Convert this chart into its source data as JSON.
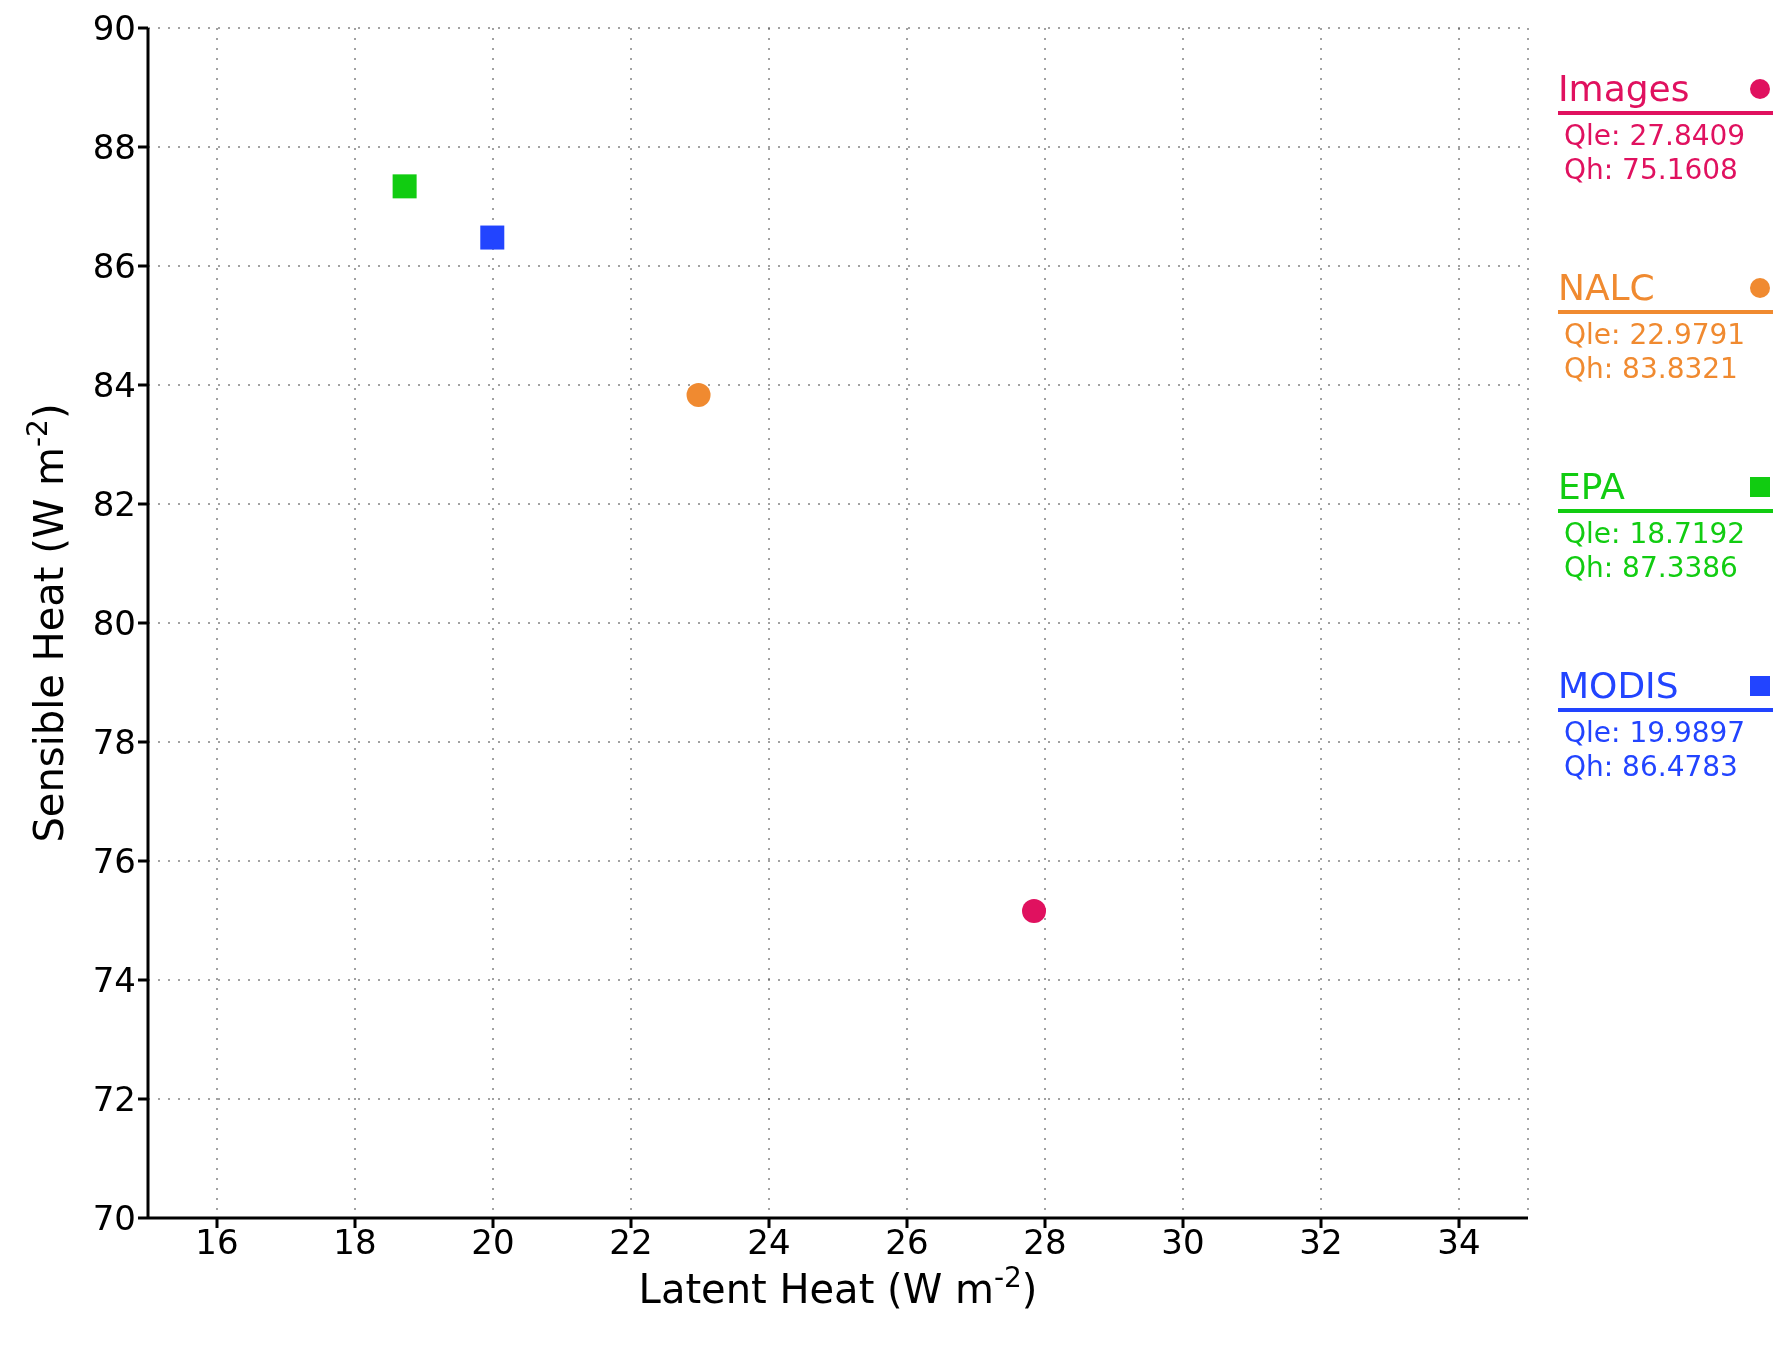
{
  "chart_data": {
    "type": "scatter",
    "xlabel": "Latent Heat (W m$^{-2}$)",
    "ylabel": "Sensible Heat (W m$^{-2}$)",
    "xlim": [
      15,
      35
    ],
    "xticks": [
      16,
      18,
      20,
      22,
      24,
      26,
      28,
      30,
      32,
      34
    ],
    "ylim": [
      70,
      90
    ],
    "yticks": [
      70,
      72,
      74,
      76,
      78,
      80,
      82,
      84,
      86,
      88,
      90
    ],
    "grid": true,
    "legend": "right",
    "series": [
      {
        "name": "Images",
        "color": "#e0115f",
        "marker": "circle",
        "x": [
          27.8409
        ],
        "values": [
          75.1608
        ]
      },
      {
        "name": "NALC",
        "color": "#f08a30",
        "marker": "circle",
        "x": [
          22.9791
        ],
        "values": [
          83.8321
        ]
      },
      {
        "name": "EPA",
        "color": "#11cc11",
        "marker": "square",
        "x": [
          18.7192
        ],
        "values": [
          87.3386
        ]
      },
      {
        "name": "MODIS",
        "color": "#2244ff",
        "marker": "square",
        "x": [
          19.9897
        ],
        "values": [
          86.4783
        ]
      }
    ],
    "annotations": [
      "Qle: 27.8409",
      "Qh: 75.1608",
      "Qle: 22.9791",
      "Qh: 83.8321",
      "Qle: 18.7192",
      "Qh: 87.3386",
      "Qle: 19.9897",
      "Qh: 86.4783"
    ]
  }
}
